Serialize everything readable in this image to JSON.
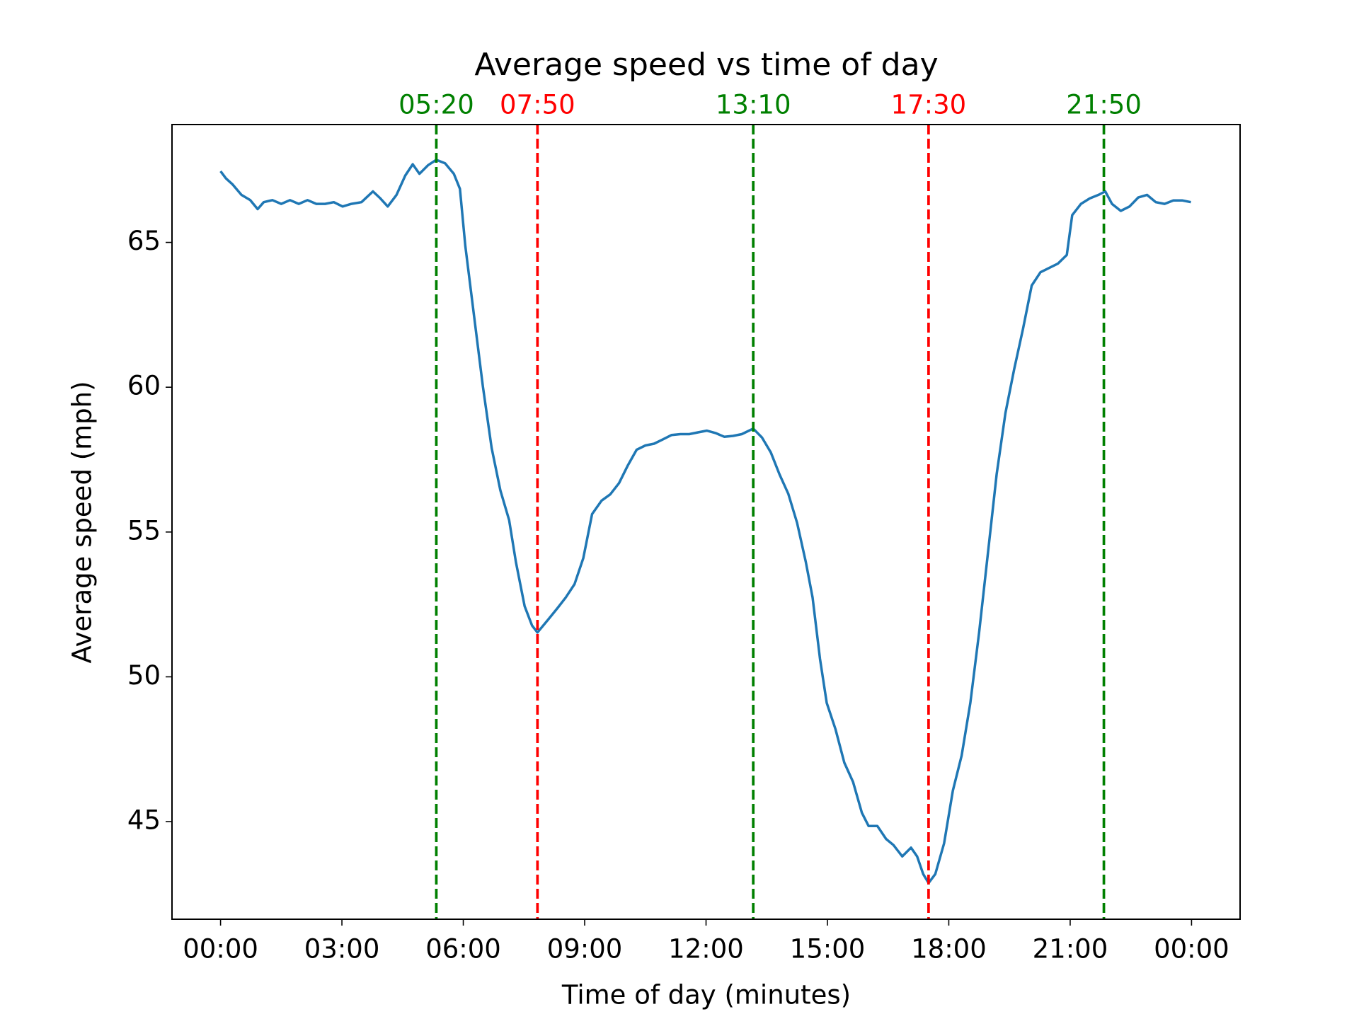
{
  "chart_data": {
    "type": "line",
    "title": "Average speed vs time of day",
    "xlabel": "Time of day (minutes)",
    "ylabel": "Average speed (mph)",
    "color": "#1f77b4",
    "x": [
      0,
      8,
      18,
      31,
      44,
      55,
      64,
      77,
      90,
      103,
      116,
      129,
      142,
      155,
      168,
      181,
      194,
      209,
      226,
      237,
      248,
      261,
      274,
      285,
      295,
      308,
      320,
      333,
      346,
      355,
      363,
      376,
      389,
      402,
      415,
      428,
      438,
      451,
      462,
      470,
      486,
      500,
      512,
      525,
      538,
      551,
      565,
      578,
      591,
      604,
      617,
      630,
      643,
      656,
      669,
      682,
      695,
      708,
      721,
      734,
      747,
      760,
      773,
      790,
      803,
      816,
      829,
      842,
      855,
      868,
      878,
      889,
      899,
      912,
      925,
      938,
      951,
      961,
      974,
      987,
      998,
      1011,
      1024,
      1033,
      1042,
      1050,
      1060,
      1073,
      1086,
      1099,
      1112,
      1125,
      1138,
      1151,
      1164,
      1177,
      1190,
      1203,
      1216,
      1229,
      1242,
      1255,
      1263,
      1276,
      1289,
      1302,
      1312,
      1322,
      1335,
      1348,
      1361,
      1374,
      1387,
      1400,
      1413,
      1426,
      1439
    ],
    "values": [
      67.46,
      67.21,
      67.0,
      66.64,
      66.46,
      66.15,
      66.39,
      66.46,
      66.33,
      66.46,
      66.33,
      66.46,
      66.33,
      66.33,
      66.39,
      66.24,
      66.33,
      66.39,
      66.76,
      66.52,
      66.24,
      66.64,
      67.31,
      67.7,
      67.37,
      67.67,
      67.85,
      67.73,
      67.37,
      66.85,
      64.88,
      62.45,
      60.03,
      57.9,
      56.44,
      55.41,
      53.96,
      52.44,
      51.77,
      51.53,
      51.98,
      52.38,
      52.74,
      53.2,
      54.1,
      55.62,
      56.08,
      56.3,
      56.69,
      57.3,
      57.84,
      57.99,
      58.05,
      58.2,
      58.35,
      58.38,
      58.38,
      58.44,
      58.5,
      58.42,
      58.29,
      58.32,
      58.38,
      58.57,
      58.26,
      57.75,
      56.99,
      56.32,
      55.32,
      53.96,
      52.74,
      50.62,
      49.1,
      48.19,
      47.04,
      46.37,
      45.31,
      44.85,
      44.85,
      44.4,
      44.19,
      43.8,
      44.1,
      43.8,
      43.19,
      42.88,
      43.19,
      44.25,
      46.07,
      47.28,
      49.1,
      51.53,
      54.26,
      57.0,
      59.11,
      60.63,
      62.0,
      63.51,
      63.97,
      64.12,
      64.27,
      64.57,
      65.94,
      66.33,
      66.52,
      66.64,
      66.76,
      66.33,
      66.09,
      66.24,
      66.55,
      66.64,
      66.39,
      66.33,
      66.45,
      66.45,
      66.39
    ],
    "vlines": [
      {
        "x": 320,
        "label": "05:20",
        "color": "#008000"
      },
      {
        "x": 470,
        "label": "07:50",
        "color": "#ff0000"
      },
      {
        "x": 790,
        "label": "13:10",
        "color": "#008000"
      },
      {
        "x": 1050,
        "label": "17:30",
        "color": "#ff0000"
      },
      {
        "x": 1310,
        "label": "21:50",
        "color": "#008000"
      }
    ],
    "xlim": [
      -72,
      1512
    ],
    "xticks": [
      {
        "value": 0,
        "label": "00:00"
      },
      {
        "value": 180,
        "label": "03:00"
      },
      {
        "value": 360,
        "label": "06:00"
      },
      {
        "value": 540,
        "label": "09:00"
      },
      {
        "value": 720,
        "label": "12:00"
      },
      {
        "value": 900,
        "label": "15:00"
      },
      {
        "value": 1080,
        "label": "18:00"
      },
      {
        "value": 1260,
        "label": "21:00"
      },
      {
        "value": 1440,
        "label": "00:00"
      }
    ],
    "ylim": [
      41.63,
      69.07
    ],
    "yticks": [
      45,
      50,
      55,
      60,
      65
    ]
  }
}
